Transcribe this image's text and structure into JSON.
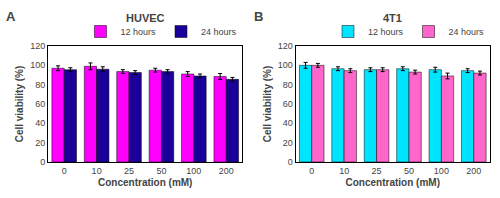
{
  "chart_data": [
    {
      "type": "bar",
      "title": "HUVEC",
      "xlabel": "Concentration (mM)",
      "ylabel": "Cell viability (%)",
      "categories": [
        0,
        10,
        25,
        50,
        100,
        200
      ],
      "series": [
        {
          "name": "12 hours",
          "color": "#FF00FF",
          "values": [
            97,
            99,
            93.5,
            95,
            91,
            88.5
          ],
          "errors": [
            2.5,
            3.5,
            2.0,
            2.0,
            2.5,
            3.0
          ]
        },
        {
          "name": "24 hours",
          "color": "#1A0099",
          "values": [
            95.5,
            96,
            92.5,
            93.5,
            89,
            85.5
          ],
          "errors": [
            2.0,
            2.5,
            2.0,
            2.0,
            2.0,
            2.0
          ]
        }
      ],
      "ylim": [
        0,
        120
      ],
      "yticks": [
        0,
        20,
        40,
        60,
        80,
        100,
        120
      ],
      "grid": false,
      "legend": "upper right",
      "annotations": [
        "A"
      ]
    },
    {
      "type": "bar",
      "title": "4T1",
      "xlabel": "Concentration (mM)",
      "ylabel": "Cell viability (%)",
      "categories": [
        0,
        10,
        25,
        50,
        100,
        200
      ],
      "series": [
        {
          "name": "12 hours",
          "color": "#00E5FF",
          "values": [
            100,
            96.5,
            95.5,
            96.5,
            95.5,
            94.5
          ],
          "errors": [
            3.0,
            2.0,
            2.0,
            2.0,
            2.5,
            2.0
          ]
        },
        {
          "name": "24 hours",
          "color": "#FF66CC",
          "values": [
            100,
            94.5,
            95.5,
            93,
            89,
            92
          ],
          "errors": [
            2.0,
            2.0,
            2.0,
            2.0,
            3.0,
            2.0
          ]
        }
      ],
      "ylim": [
        0,
        120
      ],
      "yticks": [
        0,
        20,
        40,
        60,
        80,
        100,
        120
      ],
      "grid": false,
      "legend": "upper right",
      "annotations": [
        "B"
      ]
    }
  ]
}
